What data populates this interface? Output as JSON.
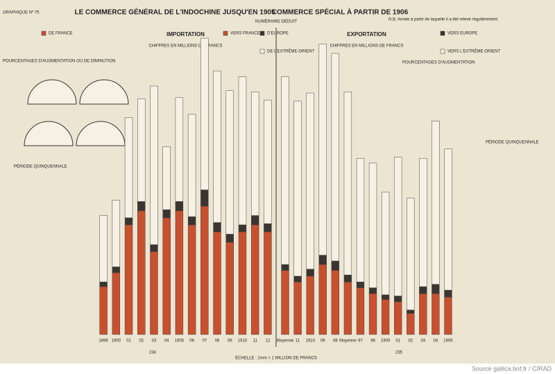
{
  "header": {
    "plate": "GRAPHIQUE Nº 75",
    "title_left": "LE COMMERCE GÉNÉRAL DE L'INDOCHINE JUSQU'EN 1905",
    "title_right": "COMMERCE SPÉCIAL À PARTIR DE 1906",
    "subtitle": "NUMÉRAIRE DÉDUIT",
    "note": "N.B. Année à partir de laquelle il a été relevé régulièrement.",
    "pct_left": "POURCENTAGES D'AUGMENTATION OU DE DIMINUTION",
    "pct_right": "POURCENTAGES D'AUGMENTATION",
    "period": "PÉRIODE QUINQUENNALE"
  },
  "footer": {
    "scale": "ÉCHELLE : 1mm = 1 MILLION DE FRANCS",
    "page_left": "234",
    "page_right": "235",
    "source": "Source gallica.bnf.fr / CIRAD"
  },
  "chart_data": [
    {
      "type": "bar",
      "stacked": true,
      "title": "IMPORTATION",
      "subtitle": "CHIFFRES EN MILLIONS DE FRANCS",
      "categories": [
        "1899",
        "1900",
        "01",
        "02",
        "03",
        "04",
        "1905",
        "06",
        "07",
        "08",
        "09",
        "1910",
        "11",
        "12"
      ],
      "series": [
        {
          "name": "DE FRANCE",
          "color": "#c8502f",
          "values": [
            41,
            53,
            94,
            106,
            71,
            100,
            106,
            94,
            110,
            88,
            79,
            88,
            94,
            88
          ]
        },
        {
          "name": "D'EUROPE",
          "color": "#3a3530",
          "values": [
            4,
            5,
            6,
            8,
            6,
            7,
            8,
            7,
            14,
            8,
            7,
            6,
            8,
            7
          ]
        },
        {
          "name": "DE L'EXTRÊME-ORIENT",
          "color": "#f6f1e4",
          "values": [
            57,
            57,
            86,
            88,
            136,
            54,
            89,
            88,
            130,
            130,
            123,
            127,
            106,
            106
          ]
        }
      ],
      "ylim": [
        0,
        260
      ]
    },
    {
      "type": "bar",
      "stacked": true,
      "title": "EXPORTATION",
      "subtitle": "CHIFFRES EN MILLIONS DE FRANCS",
      "categories": [
        "Moyenne",
        "11",
        "1910",
        "09",
        "08",
        "Moyenne",
        "97",
        "98",
        "1900",
        "01",
        "02",
        "03",
        "04",
        "1905"
      ],
      "series": [
        {
          "name": "VERS FRANCE",
          "color": "#c8502f",
          "values": [
            55,
            45,
            50,
            60,
            55,
            45,
            40,
            35,
            30,
            28,
            18,
            35,
            35,
            32
          ]
        },
        {
          "name": "VERS EUROPE",
          "color": "#3a3530",
          "values": [
            5,
            5,
            6,
            8,
            8,
            6,
            5,
            5,
            4,
            5,
            3,
            6,
            8,
            6
          ]
        },
        {
          "name": "VERS L'EXTRÊME-ORIENT",
          "color": "#f6f1e4",
          "values": [
            161,
            150,
            151,
            181,
            178,
            157,
            106,
            107,
            88,
            119,
            96,
            110,
            140,
            121
          ]
        }
      ],
      "ylim": [
        0,
        260
      ]
    }
  ]
}
